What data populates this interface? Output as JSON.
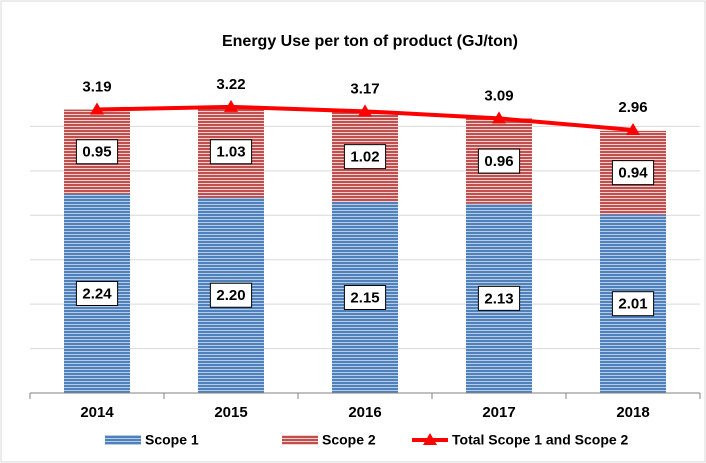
{
  "chart_data": {
    "type": "stacked-bar-line",
    "title": "Energy Use per ton of product (GJ/ton)",
    "categories": [
      "2014",
      "2015",
      "2016",
      "2017",
      "2018"
    ],
    "series": [
      {
        "name": "Scope 1",
        "color": "#4f81bd",
        "values": [
          2.24,
          2.2,
          2.15,
          2.13,
          2.01
        ],
        "value_labels": [
          "2.24",
          "2.20",
          "2.15",
          "2.13",
          "2.01"
        ]
      },
      {
        "name": "Scope 2",
        "color": "#c0504d",
        "values": [
          0.95,
          1.03,
          1.02,
          0.96,
          0.94
        ]
      },
      {
        "name": "Total Scope 1 and Scope 2",
        "color": "#ff0000",
        "type": "line",
        "values": [
          3.19,
          3.22,
          3.17,
          3.09,
          2.96
        ]
      }
    ],
    "ylim": [
      0,
      3.5
    ],
    "yticks": [
      0,
      0.5,
      1,
      1.5,
      2,
      2.5,
      3
    ],
    "grid": true,
    "legend": "bottom"
  }
}
